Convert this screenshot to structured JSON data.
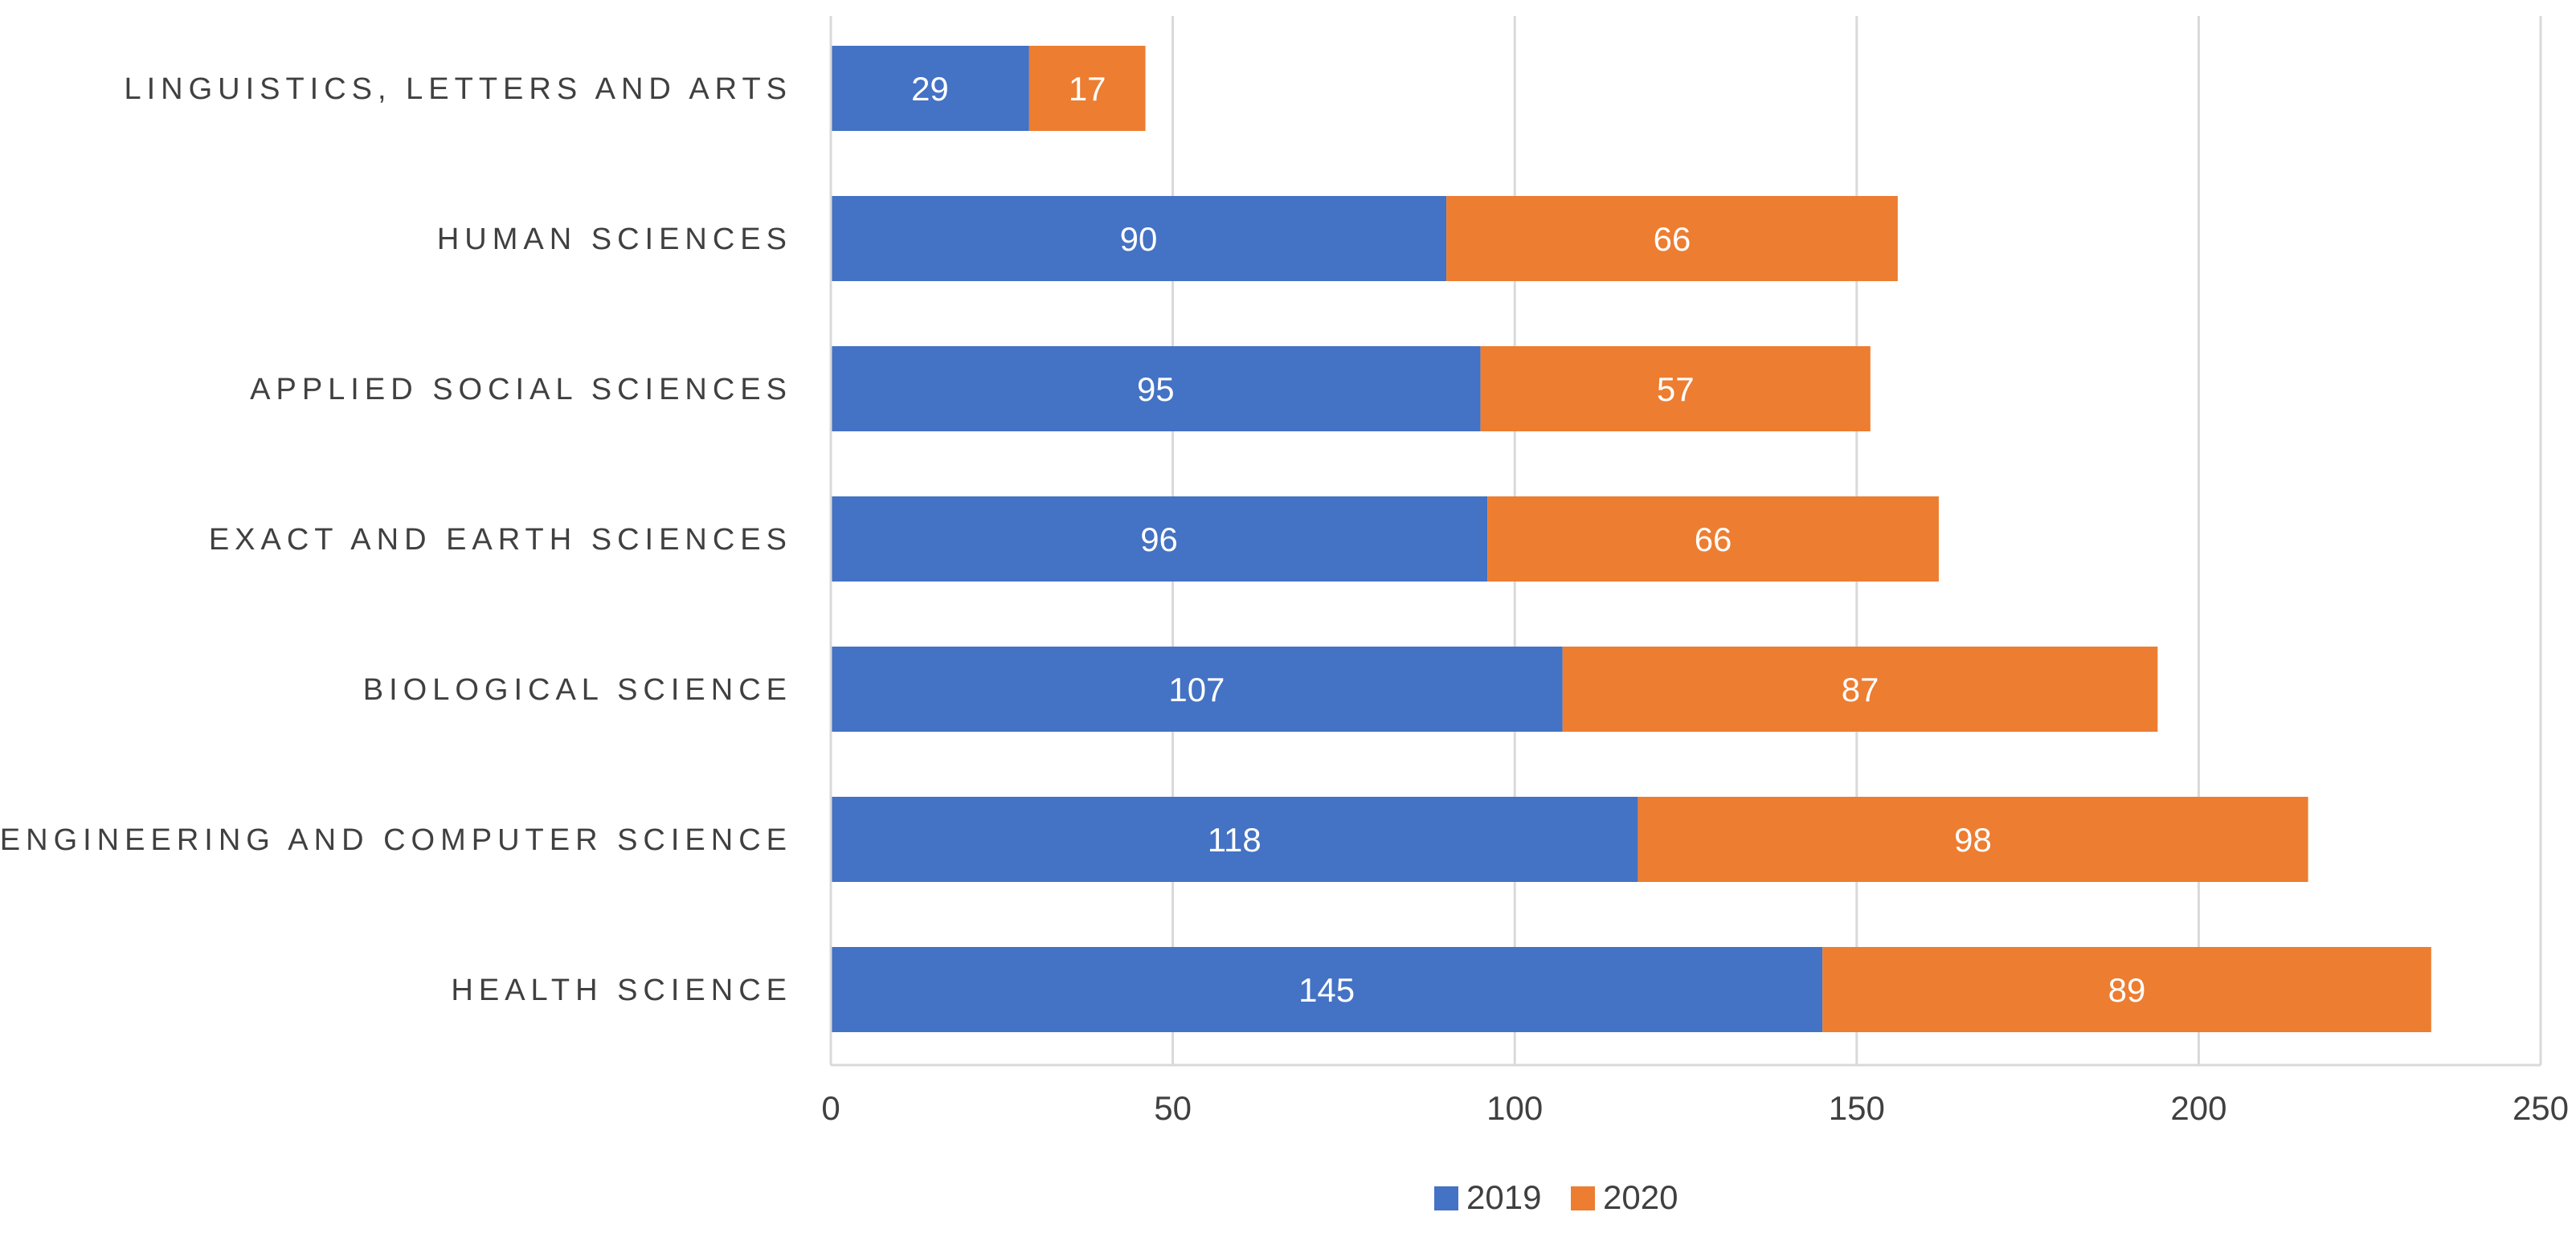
{
  "chart_data": {
    "type": "bar",
    "orientation": "horizontal",
    "stacked": true,
    "title": "",
    "xlabel": "",
    "ylabel": "",
    "categories": [
      "LINGUISTICS, LETTERS AND ARTS",
      "HUMAN SCIENCES",
      "APPLIED SOCIAL SCIENCES",
      "EXACT AND EARTH SCIENCES",
      "BIOLOGICAL SCIENCE",
      "ENGINEERING AND COMPUTER SCIENCE",
      "HEALTH SCIENCE"
    ],
    "series": [
      {
        "name": "2019",
        "color": "#4472C4",
        "values": [
          29,
          90,
          95,
          96,
          107,
          118,
          145
        ]
      },
      {
        "name": "2020",
        "color": "#ED7D31",
        "values": [
          17,
          66,
          57,
          66,
          87,
          98,
          89
        ]
      }
    ],
    "xlim": [
      0,
      250
    ],
    "xticks": [
      0,
      50,
      100,
      150,
      200,
      250
    ],
    "grid": true,
    "legend_position": "bottom",
    "gridline_color": "#D9D9D9",
    "axis_line_color": "#D9D9D9"
  }
}
